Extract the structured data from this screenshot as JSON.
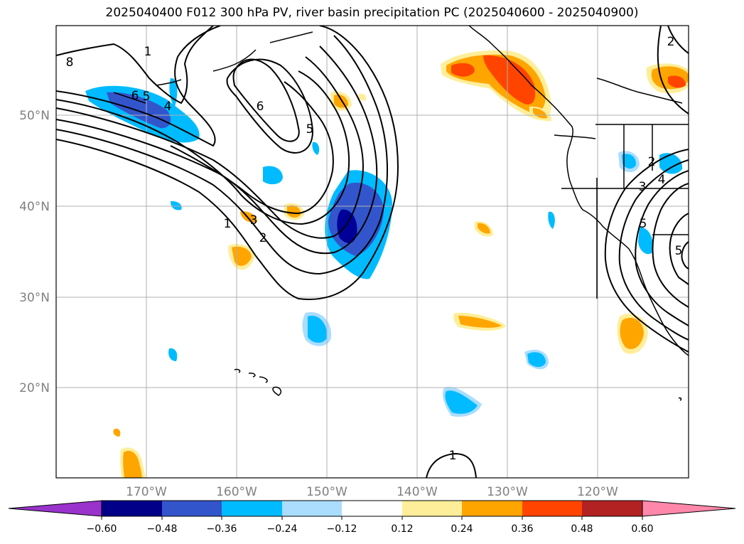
{
  "title": "2025040400 F012 300 hPa PV, river basin precipitation PC (2025040600 - 2025040900)",
  "map": {
    "lon_labels": [
      "170°W",
      "160°W",
      "150°W",
      "140°W",
      "130°W",
      "120°W"
    ],
    "lat_labels": [
      "50°N",
      "40°N",
      "30°N",
      "20°N"
    ],
    "contour_labels": [
      "8",
      "1",
      "6",
      "5",
      "4",
      "6",
      "5",
      "1",
      "2",
      "3",
      "1",
      "2",
      "3",
      "4",
      "5",
      "5",
      "2"
    ],
    "colors": {
      "neg_strong": "#000099",
      "neg_mid": "#3355cc",
      "neg_light": "#00bbff",
      "neg_faint": "#aaddff",
      "pos_faint": "#ffee99",
      "pos_light": "#ffa500",
      "pos_mid": "#ff4400",
      "grid": "#b0b0b0"
    }
  },
  "colorbar": {
    "ticks": [
      "−0.60",
      "−0.48",
      "−0.36",
      "−0.24",
      "−0.12",
      "0.12",
      "0.24",
      "0.36",
      "0.48",
      "0.60"
    ],
    "colors": [
      "#9933cc",
      "#000088",
      "#3355cc",
      "#00bbff",
      "#aaddff",
      "#ffffff",
      "#ffee99",
      "#ffa500",
      "#ff4400",
      "#b22222",
      "#ff88aa"
    ]
  }
}
